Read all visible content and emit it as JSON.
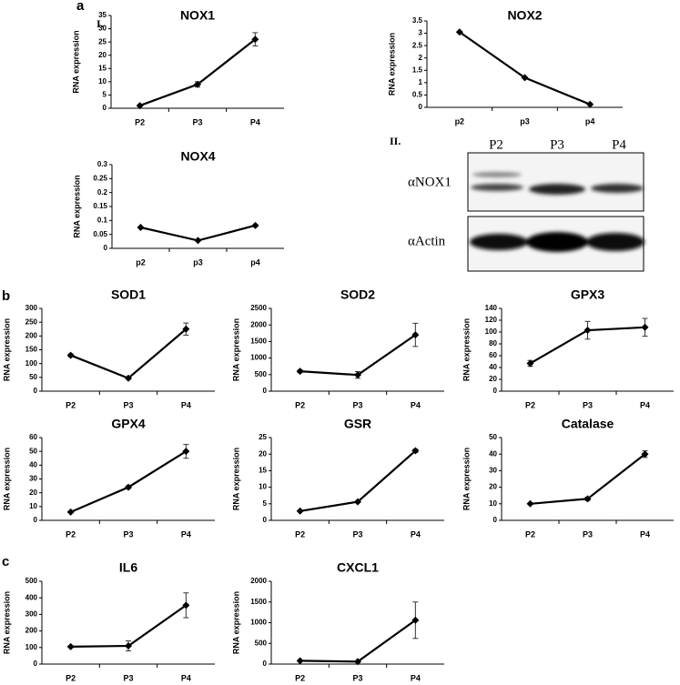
{
  "panel_labels": [
    "a",
    "I.",
    "II.",
    "b",
    "c"
  ],
  "blot": {
    "lanes": [
      "P2",
      "P3",
      "P4"
    ],
    "rows": [
      "αNOX1",
      "αActin"
    ]
  },
  "chart_data": [
    {
      "type": "line",
      "title": "NOX1",
      "ylabel": "RNA expression",
      "categories": [
        "P2",
        "P3",
        "P4"
      ],
      "values": [
        1,
        9,
        26
      ],
      "errors": [
        null,
        1,
        2.5
      ],
      "color": "#000000",
      "ylim": [
        0,
        35
      ],
      "yticks": [
        0,
        5,
        10,
        15,
        20,
        25,
        30,
        35
      ]
    },
    {
      "type": "line",
      "title": "NOX2",
      "ylabel": "RNA expression",
      "categories": [
        "p2",
        "p3",
        "p4"
      ],
      "values": [
        3.05,
        1.2,
        0.12
      ],
      "errors": [
        null,
        null,
        null
      ],
      "color": "#000000",
      "ylim": [
        0,
        3.5
      ],
      "yticks": [
        0,
        0.5,
        1,
        1.5,
        2,
        2.5,
        3,
        3.5
      ]
    },
    {
      "type": "line",
      "title": "NOX4",
      "ylabel": "RNA expression",
      "categories": [
        "p2",
        "p3",
        "p4"
      ],
      "values": [
        0.075,
        0.028,
        0.082
      ],
      "errors": [
        null,
        null,
        null
      ],
      "color": "#000000",
      "ylim": [
        0,
        0.3
      ],
      "yticks": [
        0,
        0.05,
        0.1,
        0.15,
        0.2,
        0.25,
        0.3
      ]
    },
    {
      "type": "line",
      "title": "SOD1",
      "ylabel": "RNA expression",
      "categories": [
        "P2",
        "P3",
        "P4"
      ],
      "values": [
        130,
        47,
        225
      ],
      "errors": [
        5,
        3,
        22
      ],
      "color": "#000000",
      "ylim": [
        0,
        300
      ],
      "yticks": [
        0,
        50,
        100,
        150,
        200,
        250,
        300
      ]
    },
    {
      "type": "line",
      "title": "SOD2",
      "ylabel": "RNA expression",
      "categories": [
        "P2",
        "P3",
        "P4"
      ],
      "values": [
        600,
        490,
        1700
      ],
      "errors": [
        40,
        100,
        350
      ],
      "color": "#000000",
      "ylim": [
        0,
        2500
      ],
      "yticks": [
        0,
        500,
        1000,
        1500,
        2000,
        2500
      ]
    },
    {
      "type": "line",
      "title": "GPX3",
      "ylabel": "RNA expression",
      "categories": [
        "P2",
        "P3",
        "P4"
      ],
      "values": [
        47,
        103,
        108
      ],
      "errors": [
        5,
        15,
        15
      ],
      "color": "#000000",
      "ylim": [
        0,
        140
      ],
      "yticks": [
        0,
        20,
        40,
        60,
        80,
        100,
        120,
        140
      ]
    },
    {
      "type": "line",
      "title": "GPX4",
      "ylabel": "RNA expression",
      "categories": [
        "P2",
        "P3",
        "P4"
      ],
      "values": [
        6,
        24,
        50
      ],
      "errors": [
        null,
        1,
        5
      ],
      "color": "#000000",
      "ylim": [
        0,
        60
      ],
      "yticks": [
        0,
        10,
        20,
        30,
        40,
        50,
        60
      ]
    },
    {
      "type": "line",
      "title": "GSR",
      "ylabel": "RNA expression",
      "categories": [
        "P2",
        "P3",
        "P4"
      ],
      "values": [
        2.8,
        5.6,
        21
      ],
      "errors": [
        null,
        null,
        0.5
      ],
      "color": "#000000",
      "ylim": [
        0,
        25
      ],
      "yticks": [
        0,
        5,
        10,
        15,
        20,
        25
      ]
    },
    {
      "type": "line",
      "title": "Catalase",
      "ylabel": "RNA expression",
      "categories": [
        "P2",
        "P3",
        "P4"
      ],
      "values": [
        10,
        13,
        40
      ],
      "errors": [
        null,
        1,
        2
      ],
      "color": "#000000",
      "ylim": [
        0,
        50
      ],
      "yticks": [
        0,
        10,
        20,
        30,
        40,
        50
      ]
    },
    {
      "type": "line",
      "title": "IL6",
      "ylabel": "RNA expression",
      "categories": [
        "P2",
        "P3",
        "P4"
      ],
      "values": [
        105,
        110,
        355
      ],
      "errors": [
        5,
        30,
        75
      ],
      "color": "#000000",
      "ylim": [
        0,
        500
      ],
      "yticks": [
        0,
        100,
        200,
        300,
        400,
        500
      ]
    },
    {
      "type": "line",
      "title": "CXCL1",
      "ylabel": "RNA expression",
      "categories": [
        "P2",
        "P3",
        "P4"
      ],
      "values": [
        80,
        60,
        1060
      ],
      "errors": [
        10,
        10,
        440
      ],
      "color": "#000000",
      "ylim": [
        0,
        2000
      ],
      "yticks": [
        0,
        500,
        1000,
        1500,
        2000
      ]
    }
  ]
}
